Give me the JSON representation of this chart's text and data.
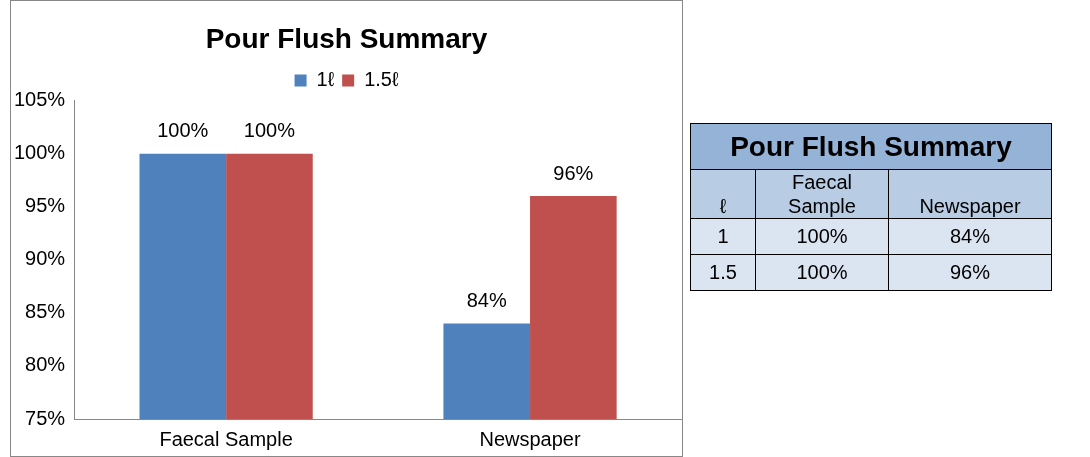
{
  "chart_data": [
    {
      "type": "bar",
      "title": "Pour Flush Summary",
      "categories": [
        "Faecal Sample",
        "Newspaper"
      ],
      "series": [
        {
          "name": "1ℓ",
          "color": "#4f81bd",
          "values": [
            100,
            84
          ],
          "value_labels": [
            "100%",
            "84%"
          ]
        },
        {
          "name": "1.5ℓ",
          "color": "#c0504d",
          "values": [
            100,
            96
          ],
          "value_labels": [
            "100%",
            "96%"
          ]
        }
      ],
      "ylim": [
        75,
        105
      ],
      "yticks": [
        {
          "value": 75,
          "label": "75%"
        },
        {
          "value": 80,
          "label": "80%"
        },
        {
          "value": 85,
          "label": "85%"
        },
        {
          "value": 90,
          "label": "90%"
        },
        {
          "value": 95,
          "label": "95%"
        },
        {
          "value": 100,
          "label": "100%"
        },
        {
          "value": 105,
          "label": "105%"
        }
      ],
      "grid": false,
      "legend": "top"
    },
    {
      "type": "other",
      "title": "Pour Flush Summary",
      "annotations": [
        "ℓ",
        "Faecal Sample",
        "Newspaper",
        "1",
        "100%",
        "84%",
        "1.5",
        "100%",
        "96%"
      ]
    }
  ]
}
